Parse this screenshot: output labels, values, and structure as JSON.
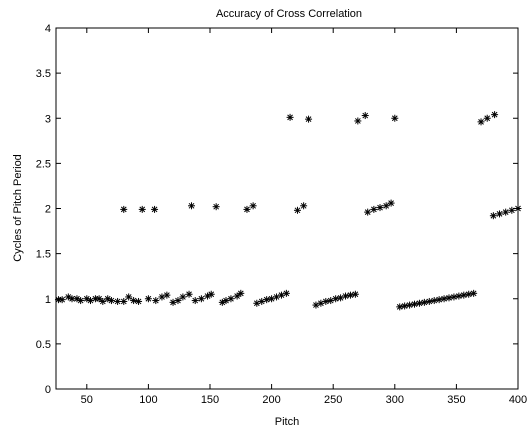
{
  "chart_data": {
    "type": "scatter",
    "title": "Accuracy of Cross Correlation",
    "xlabel": "Pitch",
    "ylabel": "Cycles of Pitch Period",
    "xlim": [
      25,
      400
    ],
    "ylim": [
      0,
      4
    ],
    "x_ticks": [
      50,
      100,
      150,
      200,
      250,
      300,
      350,
      400
    ],
    "y_ticks": [
      0,
      0.5,
      1,
      1.5,
      2,
      2.5,
      3,
      3.5,
      4
    ],
    "grid": false,
    "legend": "none",
    "marker": "*",
    "marker_color": "#000000",
    "series": [
      {
        "x": [
          27,
          30,
          35,
          38,
          42,
          45,
          50,
          53,
          57,
          60,
          63,
          67,
          70,
          75,
          80,
          84,
          88,
          92,
          100,
          106,
          111,
          115,
          120,
          124,
          128,
          133,
          138,
          143,
          148,
          151,
          160,
          163,
          167,
          172,
          175,
          188,
          192,
          196,
          200,
          204,
          208,
          212,
          236,
          240,
          244,
          248,
          252,
          256,
          260,
          264,
          268,
          304,
          308,
          312,
          316,
          320,
          324,
          328,
          332,
          336,
          340,
          344,
          348,
          352,
          356,
          360,
          364,
          80,
          95,
          105,
          135,
          155,
          180,
          185,
          221,
          226,
          278,
          283,
          288,
          293,
          297,
          380,
          385,
          390,
          395,
          400,
          215,
          230,
          270,
          276,
          300,
          370,
          375,
          381
        ],
        "y": [
          0.99,
          0.99,
          1.02,
          1.0,
          1.0,
          0.98,
          1.0,
          0.98,
          1.0,
          1.0,
          0.97,
          1.0,
          0.98,
          0.97,
          0.97,
          1.02,
          0.98,
          0.97,
          1.0,
          0.98,
          1.02,
          1.04,
          0.96,
          0.98,
          1.02,
          1.05,
          0.98,
          1.0,
          1.03,
          1.05,
          0.96,
          0.98,
          1.0,
          1.03,
          1.06,
          0.95,
          0.97,
          0.99,
          1.0,
          1.02,
          1.04,
          1.06,
          0.93,
          0.95,
          0.97,
          0.98,
          1.0,
          1.01,
          1.03,
          1.04,
          1.05,
          0.91,
          0.92,
          0.93,
          0.94,
          0.95,
          0.96,
          0.97,
          0.98,
          0.99,
          1.0,
          1.01,
          1.02,
          1.03,
          1.04,
          1.05,
          1.06,
          1.99,
          1.99,
          1.99,
          2.03,
          2.02,
          1.99,
          2.03,
          1.98,
          2.03,
          1.96,
          1.99,
          2.01,
          2.03,
          2.06,
          1.92,
          1.94,
          1.96,
          1.98,
          2.0,
          3.01,
          2.99,
          2.97,
          3.03,
          3.0,
          2.96,
          3.0,
          3.04
        ]
      }
    ]
  }
}
